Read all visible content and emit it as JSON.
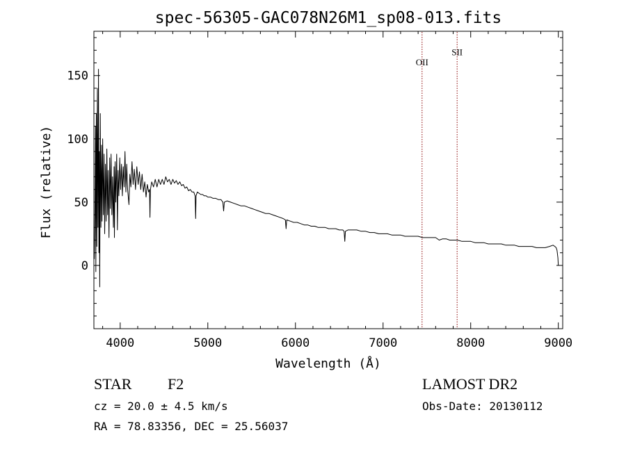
{
  "chart_data": {
    "type": "line",
    "title": "spec-56305-GAC078N26M1_sp08-013.fits",
    "xlabel": "Wavelength (Å)",
    "ylabel": "Flux (relative)",
    "xlim": [
      3700,
      9050
    ],
    "ylim": [
      -50,
      185
    ],
    "x_ticks": [
      "4000",
      "5000",
      "6000",
      "7000",
      "8000",
      "9000"
    ],
    "y_ticks": [
      "0",
      "50",
      "100",
      "150"
    ],
    "grid": false,
    "series": [
      {
        "line_color": "#000000",
        "points": [
          [
            3705,
            5
          ],
          [
            3712,
            40
          ],
          [
            3718,
            110
          ],
          [
            3722,
            -5
          ],
          [
            3728,
            120
          ],
          [
            3733,
            15
          ],
          [
            3740,
            140
          ],
          [
            3746,
            30
          ],
          [
            3752,
            155
          ],
          [
            3757,
            10
          ],
          [
            3762,
            90
          ],
          [
            3767,
            -17
          ],
          [
            3773,
            120
          ],
          [
            3780,
            30
          ],
          [
            3787,
            95
          ],
          [
            3793,
            35
          ],
          [
            3800,
            100
          ],
          [
            3808,
            40
          ],
          [
            3816,
            88
          ],
          [
            3823,
            25
          ],
          [
            3832,
            80
          ],
          [
            3840,
            35
          ],
          [
            3848,
            92
          ],
          [
            3856,
            40
          ],
          [
            3863,
            75
          ],
          [
            3872,
            22
          ],
          [
            3880,
            85
          ],
          [
            3888,
            45
          ],
          [
            3896,
            88
          ],
          [
            3905,
            40
          ],
          [
            3913,
            70
          ],
          [
            3922,
            30
          ],
          [
            3930,
            78
          ],
          [
            3934,
            22
          ],
          [
            3942,
            82
          ],
          [
            3950,
            50
          ],
          [
            3960,
            88
          ],
          [
            3968,
            28
          ],
          [
            3976,
            75
          ],
          [
            3985,
            55
          ],
          [
            3995,
            85
          ],
          [
            4005,
            60
          ],
          [
            4015,
            80
          ],
          [
            4025,
            55
          ],
          [
            4035,
            78
          ],
          [
            4045,
            62
          ],
          [
            4055,
            90
          ],
          [
            4065,
            58
          ],
          [
            4075,
            80
          ],
          [
            4085,
            60
          ],
          [
            4100,
            48
          ],
          [
            4110,
            72
          ],
          [
            4122,
            62
          ],
          [
            4135,
            82
          ],
          [
            4148,
            64
          ],
          [
            4160,
            76
          ],
          [
            4175,
            60
          ],
          [
            4190,
            78
          ],
          [
            4205,
            64
          ],
          [
            4220,
            74
          ],
          [
            4235,
            60
          ],
          [
            4250,
            72
          ],
          [
            4265,
            58
          ],
          [
            4280,
            66
          ],
          [
            4295,
            54
          ],
          [
            4310,
            64
          ],
          [
            4325,
            58
          ],
          [
            4335,
            60
          ],
          [
            4340,
            38
          ],
          [
            4345,
            60
          ],
          [
            4360,
            66
          ],
          [
            4380,
            62
          ],
          [
            4400,
            68
          ],
          [
            4420,
            62
          ],
          [
            4440,
            68
          ],
          [
            4460,
            64
          ],
          [
            4480,
            68
          ],
          [
            4500,
            64
          ],
          [
            4520,
            70
          ],
          [
            4540,
            66
          ],
          [
            4560,
            68
          ],
          [
            4580,
            64
          ],
          [
            4600,
            68
          ],
          [
            4620,
            65
          ],
          [
            4640,
            67
          ],
          [
            4660,
            64
          ],
          [
            4680,
            66
          ],
          [
            4700,
            63
          ],
          [
            4720,
            64
          ],
          [
            4740,
            61
          ],
          [
            4760,
            62
          ],
          [
            4780,
            59
          ],
          [
            4800,
            60
          ],
          [
            4820,
            58
          ],
          [
            4840,
            58
          ],
          [
            4855,
            55
          ],
          [
            4861,
            37
          ],
          [
            4866,
            55
          ],
          [
            4880,
            58
          ],
          [
            4900,
            57
          ],
          [
            4920,
            56
          ],
          [
            4940,
            56
          ],
          [
            4960,
            55
          ],
          [
            4980,
            55
          ],
          [
            5000,
            54
          ],
          [
            5030,
            54
          ],
          [
            5060,
            53
          ],
          [
            5090,
            53
          ],
          [
            5120,
            52
          ],
          [
            5150,
            52
          ],
          [
            5172,
            50
          ],
          [
            5180,
            43
          ],
          [
            5188,
            50
          ],
          [
            5220,
            51
          ],
          [
            5260,
            50
          ],
          [
            5300,
            49
          ],
          [
            5340,
            48
          ],
          [
            5380,
            47
          ],
          [
            5420,
            47
          ],
          [
            5460,
            46
          ],
          [
            5500,
            45
          ],
          [
            5540,
            44
          ],
          [
            5580,
            43
          ],
          [
            5620,
            42
          ],
          [
            5660,
            41
          ],
          [
            5700,
            41
          ],
          [
            5740,
            40
          ],
          [
            5780,
            39
          ],
          [
            5820,
            38
          ],
          [
            5860,
            37
          ],
          [
            5885,
            36
          ],
          [
            5893,
            29
          ],
          [
            5900,
            36
          ],
          [
            5940,
            35
          ],
          [
            5980,
            34
          ],
          [
            6020,
            34
          ],
          [
            6060,
            33
          ],
          [
            6100,
            32
          ],
          [
            6140,
            32
          ],
          [
            6180,
            31
          ],
          [
            6220,
            31
          ],
          [
            6260,
            30
          ],
          [
            6300,
            30
          ],
          [
            6340,
            30
          ],
          [
            6380,
            29
          ],
          [
            6420,
            29
          ],
          [
            6460,
            29
          ],
          [
            6500,
            28
          ],
          [
            6540,
            28
          ],
          [
            6555,
            27
          ],
          [
            6563,
            19
          ],
          [
            6570,
            27
          ],
          [
            6600,
            28
          ],
          [
            6650,
            28
          ],
          [
            6700,
            28
          ],
          [
            6750,
            27
          ],
          [
            6800,
            27
          ],
          [
            6850,
            26
          ],
          [
            6900,
            26
          ],
          [
            6950,
            25
          ],
          [
            7000,
            25
          ],
          [
            7050,
            25
          ],
          [
            7100,
            24
          ],
          [
            7150,
            24
          ],
          [
            7200,
            24
          ],
          [
            7250,
            23
          ],
          [
            7300,
            23
          ],
          [
            7350,
            23
          ],
          [
            7400,
            23
          ],
          [
            7450,
            22
          ],
          [
            7500,
            22
          ],
          [
            7550,
            22
          ],
          [
            7600,
            22
          ],
          [
            7640,
            20
          ],
          [
            7680,
            21
          ],
          [
            7720,
            21
          ],
          [
            7760,
            20
          ],
          [
            7800,
            20
          ],
          [
            7850,
            20
          ],
          [
            7900,
            19
          ],
          [
            7950,
            19
          ],
          [
            8000,
            19
          ],
          [
            8050,
            18
          ],
          [
            8100,
            18
          ],
          [
            8150,
            18
          ],
          [
            8200,
            17
          ],
          [
            8250,
            17
          ],
          [
            8300,
            17
          ],
          [
            8350,
            17
          ],
          [
            8400,
            16
          ],
          [
            8450,
            16
          ],
          [
            8500,
            16
          ],
          [
            8550,
            15
          ],
          [
            8600,
            15
          ],
          [
            8650,
            15
          ],
          [
            8700,
            15
          ],
          [
            8750,
            14
          ],
          [
            8800,
            14
          ],
          [
            8850,
            14
          ],
          [
            8900,
            15
          ],
          [
            8940,
            16
          ],
          [
            8960,
            15
          ],
          [
            8975,
            14
          ],
          [
            8985,
            12
          ],
          [
            8995,
            6
          ],
          [
            9000,
            0
          ]
        ]
      }
    ],
    "annotations": [
      {
        "label": "OII",
        "x": 7445,
        "label_y": 158,
        "line_color": "#8b0000"
      },
      {
        "label": "SII",
        "x": 7845,
        "label_y": 166,
        "line_color": "#8b0000"
      }
    ]
  },
  "footer": {
    "object_type": "STAR",
    "subclass": "F2",
    "survey": "LAMOST DR2",
    "redshift": "cz = 20.0 ± 4.5 km/s",
    "obs_date": "Obs-Date: 20130112",
    "coordinates": "RA =  78.83356, DEC =  25.56037"
  }
}
